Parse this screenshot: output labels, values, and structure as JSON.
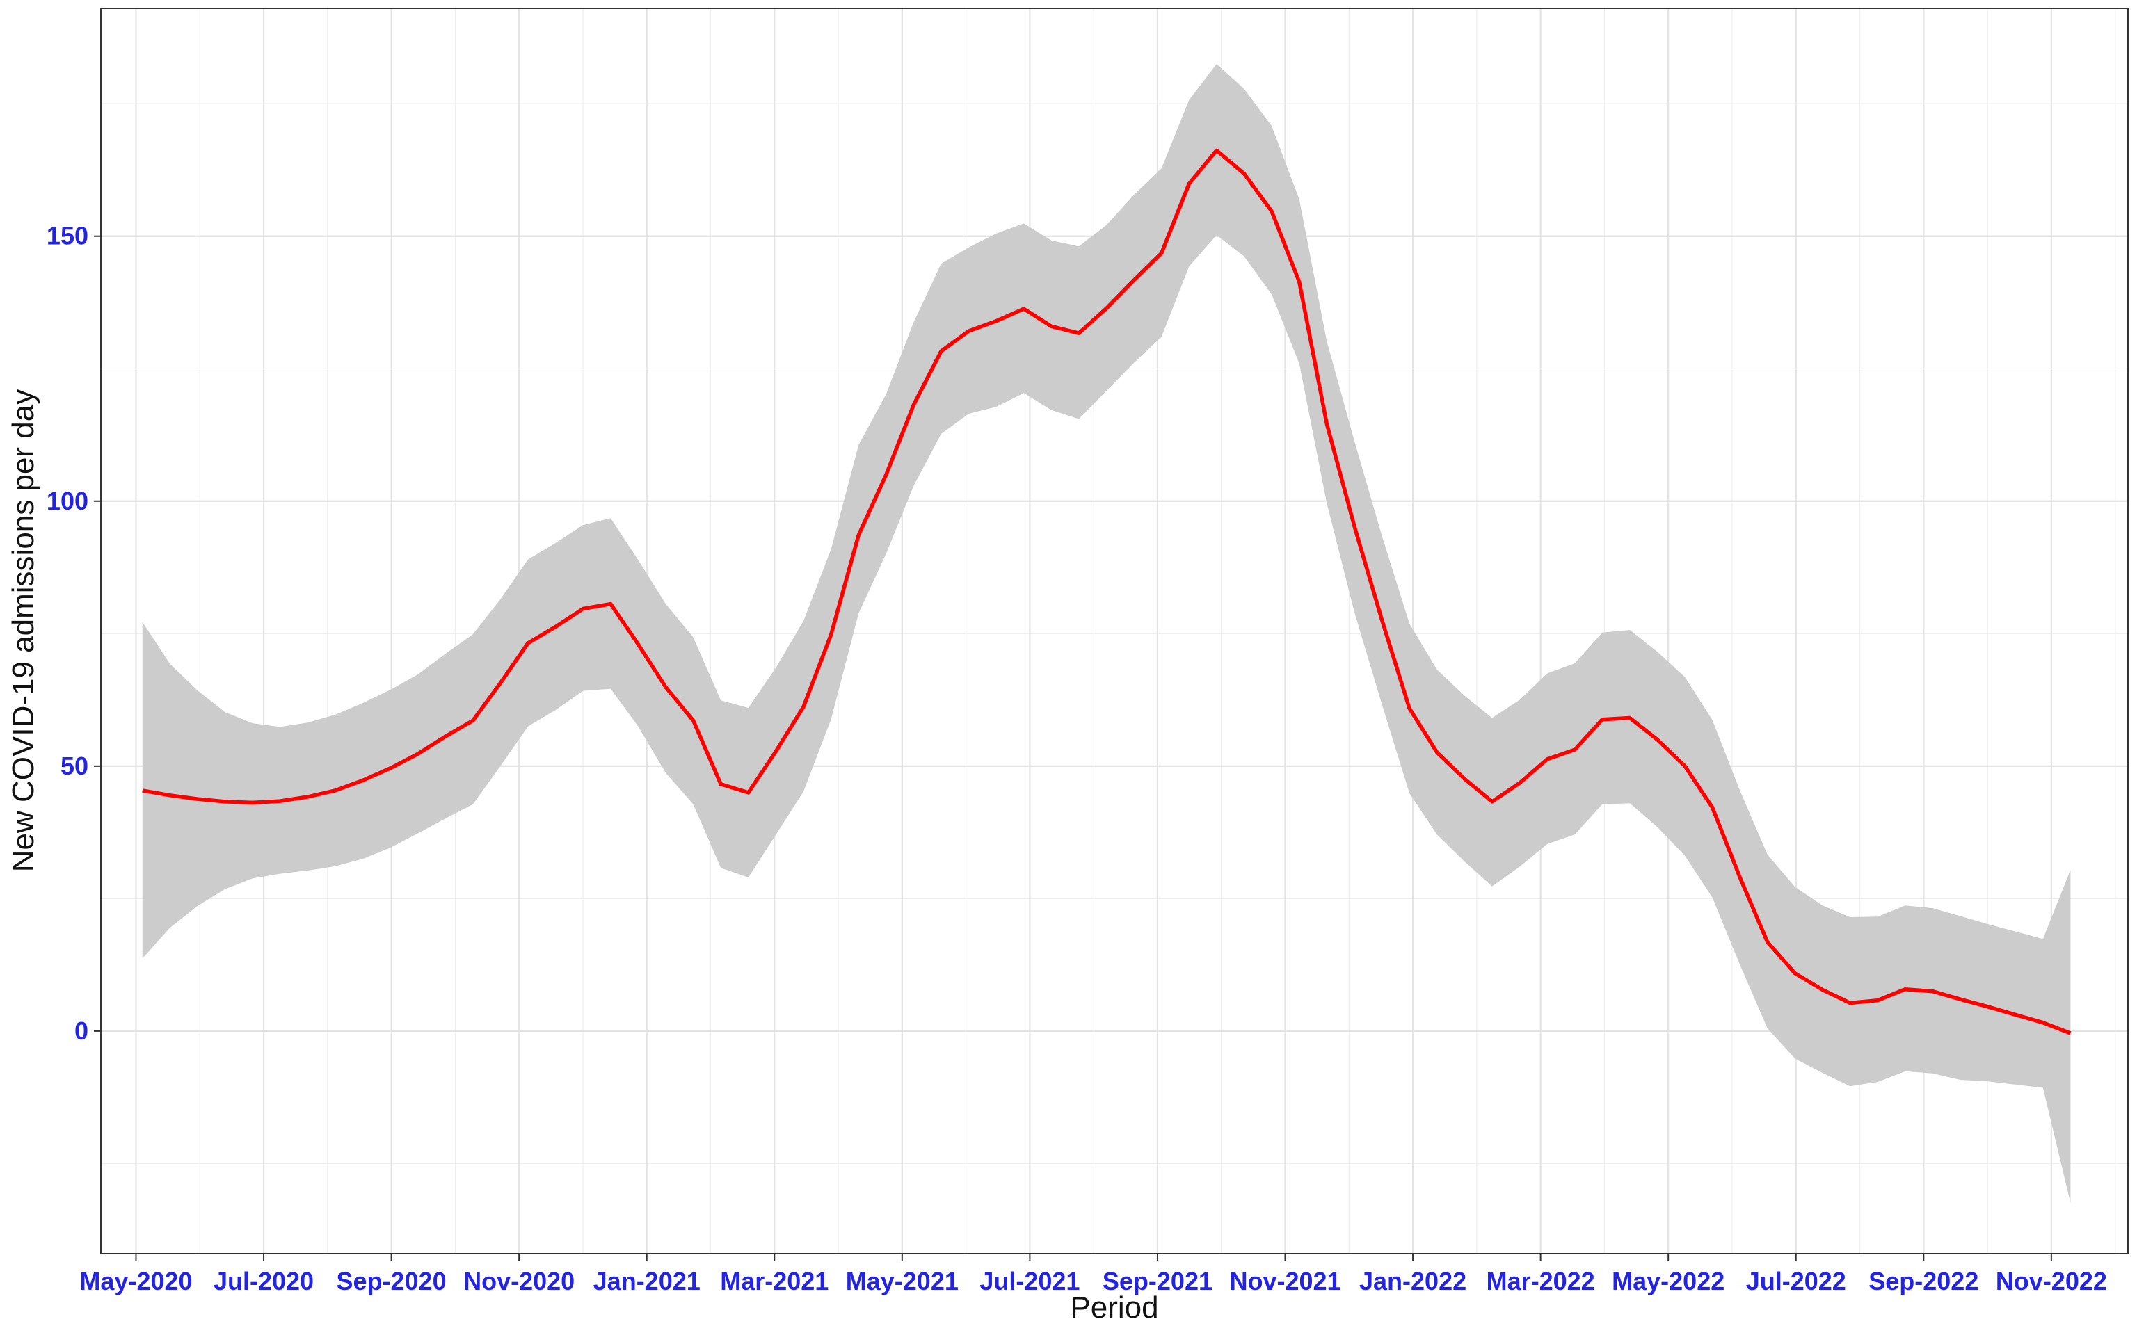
{
  "chart_data": {
    "type": "line",
    "xlabel": "Period",
    "ylabel": "New COVID-19 admissions per day",
    "x_tick_labels": [
      "May-2020",
      "Jul-2020",
      "Sep-2020",
      "Nov-2020",
      "Jan-2021",
      "Mar-2021",
      "May-2021",
      "Jul-2021",
      "Sep-2021",
      "Nov-2021",
      "Jan-2022",
      "Mar-2022",
      "May-2022",
      "Jul-2022",
      "Sep-2022",
      "Nov-2022"
    ],
    "y_ticks": [
      0,
      50,
      100,
      150
    ],
    "ylim": [
      -42,
      193
    ],
    "xlim_months": [
      -0.55,
      31.2
    ],
    "grid": true,
    "line_color": "#ff0000",
    "band_color": "#cccccc",
    "tick_label_color": "#2323e6",
    "series": [
      {
        "x": [
          "2020-05",
          "2020-05",
          "2020-06",
          "2020-06",
          "2020-06",
          "2020-07",
          "2020-07",
          "2020-07",
          "2020-08",
          "2020-08",
          "2020-09",
          "2020-09",
          "2020-10",
          "2020-10",
          "2020-10",
          "2020-11",
          "2020-11",
          "2020-12",
          "2020-12",
          "2020-12",
          "2021-01",
          "2021-01",
          "2021-02",
          "2021-02",
          "2021-02",
          "2021-03",
          "2021-03",
          "2021-04",
          "2021-04",
          "2021-05",
          "2021-05",
          "2021-05",
          "2021-06",
          "2021-06",
          "2021-07",
          "2021-07",
          "2021-08",
          "2021-08",
          "2021-08",
          "2021-09",
          "2021-09",
          "2021-10",
          "2021-10",
          "2021-10",
          "2021-11",
          "2021-11",
          "2021-12",
          "2021-12",
          "2022-01",
          "2022-01",
          "2022-01",
          "2022-02",
          "2022-02",
          "2022-03",
          "2022-03",
          "2022-04",
          "2022-04",
          "2022-04",
          "2022-05",
          "2022-05",
          "2022-06",
          "2022-06",
          "2022-07",
          "2022-07",
          "2022-08",
          "2022-08",
          "2022-09",
          "2022-09",
          "2022-10",
          "2022-10",
          "2022-11"
        ],
        "fit": [
          45.4,
          44.5,
          43.8,
          43.3,
          43.1,
          43.4,
          44.2,
          45.4,
          47.3,
          49.6,
          52.3,
          55.6,
          58.6,
          65.7,
          73.2,
          76.3,
          79.7,
          80.6,
          73.0,
          64.9,
          58.6,
          46.6,
          45.0,
          52.8,
          61.2,
          74.8,
          93.6,
          105.0,
          118.2,
          128.3,
          132.1,
          134.0,
          136.3,
          133.0,
          131.7,
          136.4,
          141.7,
          146.8,
          159.9,
          166.2,
          161.8,
          154.7,
          141.4,
          114.6,
          95.3,
          77.6,
          60.9,
          52.6,
          47.6,
          43.3,
          46.8,
          51.3,
          53.1,
          58.8,
          59.1,
          55.0,
          50.0,
          42.2,
          29.0,
          16.8,
          10.9,
          7.8,
          5.3,
          5.8,
          7.9,
          7.5,
          6.0,
          4.6,
          3.1,
          1.6,
          -0.4
        ],
        "lower": [
          13.7,
          19.5,
          23.6,
          26.8,
          28.8,
          29.7,
          30.3,
          31.1,
          32.5,
          34.6,
          37.3,
          40.1,
          42.8,
          50.0,
          57.5,
          60.6,
          64.2,
          64.6,
          57.5,
          48.7,
          42.8,
          30.8,
          29.0,
          37.1,
          45.2,
          58.8,
          78.8,
          90.1,
          102.9,
          112.7,
          116.5,
          117.8,
          120.4,
          117.2,
          115.5,
          120.8,
          126.1,
          131.0,
          144.3,
          150.2,
          146.2,
          139.0,
          126.0,
          99.6,
          79.1,
          61.7,
          44.9,
          37.1,
          32.0,
          27.3,
          31.0,
          35.3,
          37.1,
          42.8,
          43.0,
          38.5,
          33.1,
          25.2,
          12.5,
          0.5,
          -5.2,
          -7.9,
          -10.4,
          -9.6,
          -7.6,
          -8.0,
          -9.2,
          -9.5,
          -10.1,
          -10.7,
          -32.4
        ],
        "upper": [
          77.2,
          69.3,
          64.3,
          60.2,
          58.1,
          57.4,
          58.2,
          59.7,
          61.9,
          64.4,
          67.3,
          71.2,
          74.9,
          81.5,
          89.0,
          92.1,
          95.5,
          96.8,
          88.9,
          80.6,
          74.3,
          62.4,
          61.0,
          68.6,
          77.4,
          90.9,
          110.6,
          120.2,
          133.8,
          144.8,
          147.9,
          150.5,
          152.4,
          149.2,
          148.1,
          152.1,
          157.8,
          162.8,
          175.7,
          182.5,
          177.8,
          170.8,
          157.0,
          130.2,
          111.4,
          93.5,
          76.9,
          68.2,
          63.3,
          59.1,
          62.5,
          67.5,
          69.4,
          75.2,
          75.7,
          71.6,
          66.8,
          58.7,
          45.4,
          33.3,
          27.2,
          23.7,
          21.5,
          21.6,
          23.7,
          23.2,
          21.7,
          20.2,
          18.8,
          17.4,
          30.4
        ]
      }
    ]
  }
}
